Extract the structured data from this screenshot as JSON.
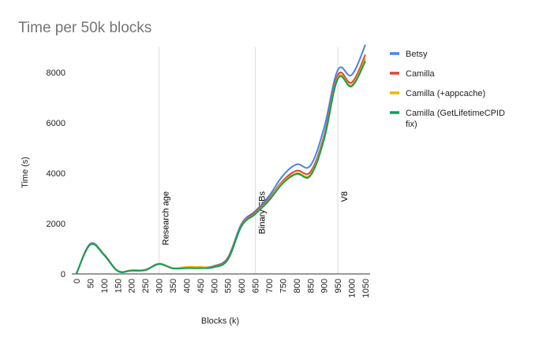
{
  "chart_data": {
    "type": "line",
    "title": "Time per 50k blocks",
    "xlabel": "Blocks (k)",
    "ylabel": "Time (s)",
    "xlim": [
      0,
      1050
    ],
    "ylim": [
      0,
      9000
    ],
    "yticks": [
      0,
      2000,
      4000,
      6000,
      8000
    ],
    "xticks": [
      0,
      50,
      100,
      150,
      200,
      250,
      300,
      350,
      400,
      450,
      500,
      550,
      600,
      650,
      700,
      750,
      800,
      850,
      900,
      950,
      1000,
      1050
    ],
    "grid": "vertical-at-annotations",
    "legend_position": "right",
    "x": [
      0,
      50,
      100,
      150,
      200,
      250,
      300,
      350,
      400,
      450,
      500,
      550,
      600,
      650,
      700,
      750,
      800,
      850,
      900,
      950,
      1000,
      1050
    ],
    "series": [
      {
        "name": "Betsy",
        "color": "#4285f4",
        "values": [
          20,
          1200,
          780,
          130,
          150,
          170,
          410,
          230,
          260,
          260,
          320,
          650,
          2000,
          2500,
          3100,
          3900,
          4350,
          4300,
          5800,
          8100,
          7900,
          9100
        ]
      },
      {
        "name": "Camilla",
        "color": "#db4437",
        "values": [
          20,
          1180,
          770,
          120,
          140,
          160,
          400,
          230,
          250,
          250,
          300,
          620,
          1950,
          2450,
          3000,
          3700,
          4100,
          4050,
          5500,
          7900,
          7600,
          8700
        ]
      },
      {
        "name": "Camilla (+appcache)",
        "color": "#f4b400",
        "values": [
          20,
          1170,
          760,
          120,
          140,
          160,
          400,
          230,
          280,
          280,
          280,
          580,
          1920,
          2400,
          2950,
          3650,
          4000,
          3950,
          5400,
          7800,
          7500,
          8550
        ]
      },
      {
        "name": "Camilla (GetLifetimeCPID fix)",
        "color": "#0f9d58",
        "values": [
          20,
          1160,
          750,
          110,
          130,
          150,
          390,
          220,
          230,
          230,
          270,
          570,
          1900,
          2380,
          2920,
          3600,
          3970,
          3900,
          5350,
          7750,
          7450,
          8450
        ]
      }
    ],
    "annotations": [
      {
        "x": 300,
        "label": "Research age"
      },
      {
        "x": 650,
        "label": "Binary SBs"
      },
      {
        "x": 950,
        "label": "V8"
      }
    ]
  }
}
